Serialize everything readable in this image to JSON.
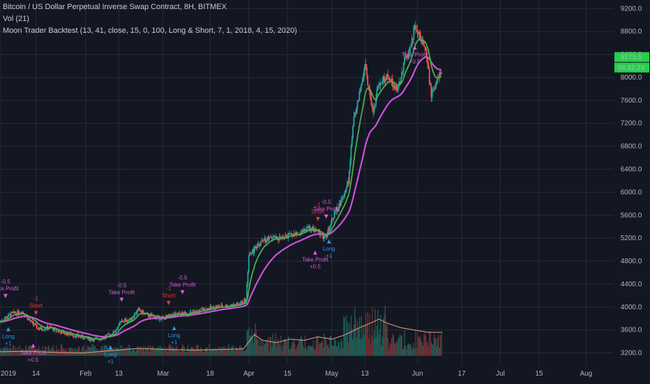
{
  "header": {
    "title": "Bitcoin / US Dollar Perpetual Inverse Swap Contract, 8H, BITMEX",
    "volume": "Vol (21)",
    "strategy": "Moon Trader Backtest (13, 41, close, 15, 0, 100, Long & Short, 7, 1, 2018, 4, 15, 2020)"
  },
  "colors": {
    "background": "#131722",
    "grid": "#262b38",
    "candle_up": "#26a69a",
    "candle_down": "#ef5350",
    "fast_ma": "#4caf50",
    "slow_ma": "#d050d8",
    "volume_ma": "#e8a07a",
    "long_signal": "#2196f3",
    "short_signal": "#e53935",
    "take_profit": "#d65ad6",
    "price_badge": "#26d04a"
  },
  "chart_data": {
    "type": "line",
    "title": "Bitcoin / US Dollar Perpetual Inverse Swap Contract, 8H, BITMEX",
    "y_ticks": [
      3200,
      3600,
      4000,
      4400,
      4800,
      5200,
      5600,
      6000,
      6400,
      6800,
      7200,
      7600,
      8000,
      8400,
      8800,
      9200
    ],
    "y_tick_labels": [
      "3200.0",
      "3600.0",
      "4000.0",
      "4400.0",
      "4800.0",
      "5200.0",
      "5600.0",
      "6000.0",
      "6400.0",
      "6800.0",
      "7200.0",
      "7600.0",
      "8000.0",
      "8400.0",
      "8800.0",
      "9200.0"
    ],
    "ylim": [
      3000,
      9350
    ],
    "x_tick_labels": [
      "2019",
      "14",
      "Feb",
      "13",
      "Mar",
      "18",
      "Apr",
      "15",
      "May",
      "13",
      "Jun",
      "17",
      "Jul",
      "15",
      "Aug"
    ],
    "x_tick_days": [
      0,
      13,
      31,
      43,
      59,
      76,
      90,
      104,
      120,
      132,
      151,
      167,
      181,
      195,
      212
    ],
    "xlim_days": [
      0,
      222
    ],
    "data_end_day": 160,
    "last_price": "8173.5",
    "countdown": "04:32:24",
    "price_path": [
      [
        0,
        3750
      ],
      [
        4,
        3880
      ],
      [
        8,
        3920
      ],
      [
        11,
        3750
      ],
      [
        14,
        3620
      ],
      [
        18,
        3640
      ],
      [
        22,
        3560
      ],
      [
        26,
        3520
      ],
      [
        30,
        3470
      ],
      [
        34,
        3430
      ],
      [
        38,
        3480
      ],
      [
        41,
        3550
      ],
      [
        44,
        3750
      ],
      [
        47,
        3780
      ],
      [
        50,
        3950
      ],
      [
        53,
        3860
      ],
      [
        56,
        3820
      ],
      [
        59,
        3800
      ],
      [
        62,
        3860
      ],
      [
        66,
        3880
      ],
      [
        70,
        3900
      ],
      [
        74,
        3960
      ],
      [
        78,
        4000
      ],
      [
        82,
        4020
      ],
      [
        86,
        4040
      ],
      [
        89,
        4120
      ],
      [
        90,
        4900
      ],
      [
        92,
        5000
      ],
      [
        95,
        5150
      ],
      [
        98,
        5200
      ],
      [
        102,
        5200
      ],
      [
        105,
        5250
      ],
      [
        108,
        5280
      ],
      [
        112,
        5380
      ],
      [
        115,
        5300
      ],
      [
        118,
        5200
      ],
      [
        120,
        5550
      ],
      [
        123,
        5800
      ],
      [
        126,
        6200
      ],
      [
        128,
        7300
      ],
      [
        130,
        7700
      ],
      [
        132,
        8200
      ],
      [
        135,
        7400
      ],
      [
        137,
        7900
      ],
      [
        140,
        8000
      ],
      [
        142,
        7900
      ],
      [
        144,
        7800
      ],
      [
        146,
        8250
      ],
      [
        148,
        8400
      ],
      [
        150,
        8900
      ],
      [
        152,
        8700
      ],
      [
        154,
        8500
      ],
      [
        156,
        7700
      ],
      [
        158,
        7900
      ],
      [
        160,
        8173
      ]
    ],
    "series": [
      {
        "name": "Vol (21)",
        "values": [
          [
            0,
            3220
          ],
          [
            10,
            3230
          ],
          [
            20,
            3210
          ],
          [
            30,
            3200
          ],
          [
            40,
            3240
          ],
          [
            50,
            3280
          ],
          [
            60,
            3260
          ],
          [
            70,
            3250
          ],
          [
            80,
            3260
          ],
          [
            88,
            3270
          ],
          [
            92,
            3520
          ],
          [
            95,
            3420
          ],
          [
            100,
            3380
          ],
          [
            105,
            3440
          ],
          [
            110,
            3420
          ],
          [
            115,
            3480
          ],
          [
            120,
            3440
          ],
          [
            125,
            3520
          ],
          [
            130,
            3640
          ],
          [
            135,
            3740
          ],
          [
            137,
            3790
          ],
          [
            140,
            3720
          ],
          [
            145,
            3640
          ],
          [
            150,
            3600
          ],
          [
            155,
            3560
          ],
          [
            160,
            3560
          ]
        ]
      }
    ],
    "signals": [
      {
        "day": 2,
        "type": "Take Profit",
        "value": "-0.5"
      },
      {
        "day": 3,
        "type": "Long",
        "value": "+1"
      },
      {
        "day": 13,
        "type": "Short",
        "value": "-1"
      },
      {
        "day": 12,
        "type": "Take Profit",
        "value": "+0.5"
      },
      {
        "day": 44,
        "type": "Take Profit",
        "value": "-0.5"
      },
      {
        "day": 40,
        "type": "Long",
        "value": "+1"
      },
      {
        "day": 61,
        "type": "Short",
        "value": "-1"
      },
      {
        "day": 66,
        "type": "Take Profit",
        "value": "-0.5"
      },
      {
        "day": 63,
        "type": "Long",
        "value": "+1"
      },
      {
        "day": 115,
        "type": "Short",
        "value": "-1"
      },
      {
        "day": 118,
        "type": "Take Profit",
        "value": "-0.5"
      },
      {
        "day": 114,
        "type": "Take Profit",
        "value": "+0.5"
      },
      {
        "day": 119,
        "type": "Long",
        "value": "+1"
      },
      {
        "day": 150,
        "type": "Take Profit",
        "value": "+0.5"
      }
    ]
  }
}
